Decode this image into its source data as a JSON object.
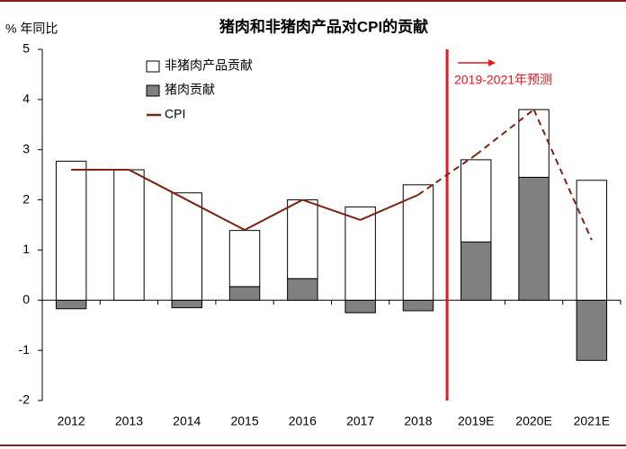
{
  "chart_data": {
    "type": "stacked_bar_line",
    "title": "猪肉和非猪肉产品对CPI的贡献",
    "y_label": "% 年同比",
    "annotation": "2019-2021年预测",
    "categories": [
      "2012",
      "2013",
      "2014",
      "2015",
      "2016",
      "2017",
      "2018",
      "2019E",
      "2020E",
      "2021E"
    ],
    "series": [
      {
        "name": "非猪肉产品贡献",
        "color": "#ffffff",
        "values": [
          2.77,
          2.6,
          2.14,
          1.12,
          1.57,
          1.86,
          2.3,
          1.64,
          1.35,
          2.39
        ]
      },
      {
        "name": "猪肉贡献",
        "color": "#808080",
        "values": [
          -0.17,
          0,
          -0.15,
          0.27,
          0.43,
          -0.25,
          -0.21,
          1.16,
          2.45,
          -1.2
        ]
      }
    ],
    "line_series": {
      "name": "CPI",
      "color": "#7b2410",
      "values": [
        2.6,
        2.6,
        2.0,
        1.4,
        2.0,
        1.6,
        2.1,
        2.9,
        3.8,
        1.2
      ]
    },
    "ylim": [
      -2,
      5
    ],
    "yticks": [
      -2,
      -1,
      0,
      1,
      2,
      3,
      4,
      5
    ]
  }
}
